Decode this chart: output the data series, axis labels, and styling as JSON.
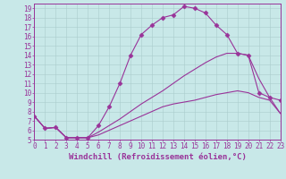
{
  "xlabel": "Windchill (Refroidissement éolien,°C)",
  "background_color": "#c8e8e8",
  "line_color": "#993399",
  "marker": "D",
  "markersize": 2.5,
  "linewidth": 0.8,
  "xlim": [
    0,
    23
  ],
  "ylim": [
    5,
    19.5
  ],
  "yticks": [
    5,
    6,
    7,
    8,
    9,
    10,
    11,
    12,
    13,
    14,
    15,
    16,
    17,
    18,
    19
  ],
  "xticks": [
    0,
    1,
    2,
    3,
    4,
    5,
    6,
    7,
    8,
    9,
    10,
    11,
    12,
    13,
    14,
    15,
    16,
    17,
    18,
    19,
    20,
    21,
    22,
    23
  ],
  "series1_x": [
    0,
    1,
    2,
    3,
    4,
    5,
    6,
    7,
    8,
    9,
    10,
    11,
    12,
    13,
    14,
    15,
    16,
    17,
    18,
    19,
    20,
    21,
    22,
    23
  ],
  "series1_y": [
    7.5,
    6.2,
    6.3,
    5.2,
    5.2,
    5.2,
    6.5,
    8.5,
    11.0,
    14.0,
    16.2,
    17.2,
    18.0,
    18.3,
    19.2,
    19.0,
    18.5,
    17.2,
    16.2,
    14.2,
    14.0,
    10.0,
    9.5,
    9.2
  ],
  "series2_x": [
    0,
    1,
    2,
    3,
    4,
    5,
    6,
    7,
    8,
    9,
    10,
    11,
    12,
    13,
    14,
    15,
    16,
    17,
    18,
    19,
    20,
    21,
    22,
    23
  ],
  "series2_y": [
    7.5,
    6.2,
    6.3,
    5.2,
    5.2,
    5.2,
    5.8,
    6.5,
    7.2,
    8.0,
    8.8,
    9.5,
    10.2,
    11.0,
    11.8,
    12.5,
    13.2,
    13.8,
    14.2,
    14.2,
    14.0,
    11.5,
    9.5,
    7.8
  ],
  "series3_x": [
    0,
    1,
    2,
    3,
    4,
    5,
    6,
    7,
    8,
    9,
    10,
    11,
    12,
    13,
    14,
    15,
    16,
    17,
    18,
    19,
    20,
    21,
    22,
    23
  ],
  "series3_y": [
    7.5,
    6.2,
    6.3,
    5.2,
    5.2,
    5.2,
    5.5,
    6.0,
    6.5,
    7.0,
    7.5,
    8.0,
    8.5,
    8.8,
    9.0,
    9.2,
    9.5,
    9.8,
    10.0,
    10.2,
    10.0,
    9.5,
    9.2,
    7.8
  ],
  "grid_color": "#aacccc",
  "xlabel_fontsize": 6.5,
  "tick_fontsize": 5.5,
  "tick_color": "#993399",
  "axis_label_color": "#993399",
  "spine_color": "#993399"
}
